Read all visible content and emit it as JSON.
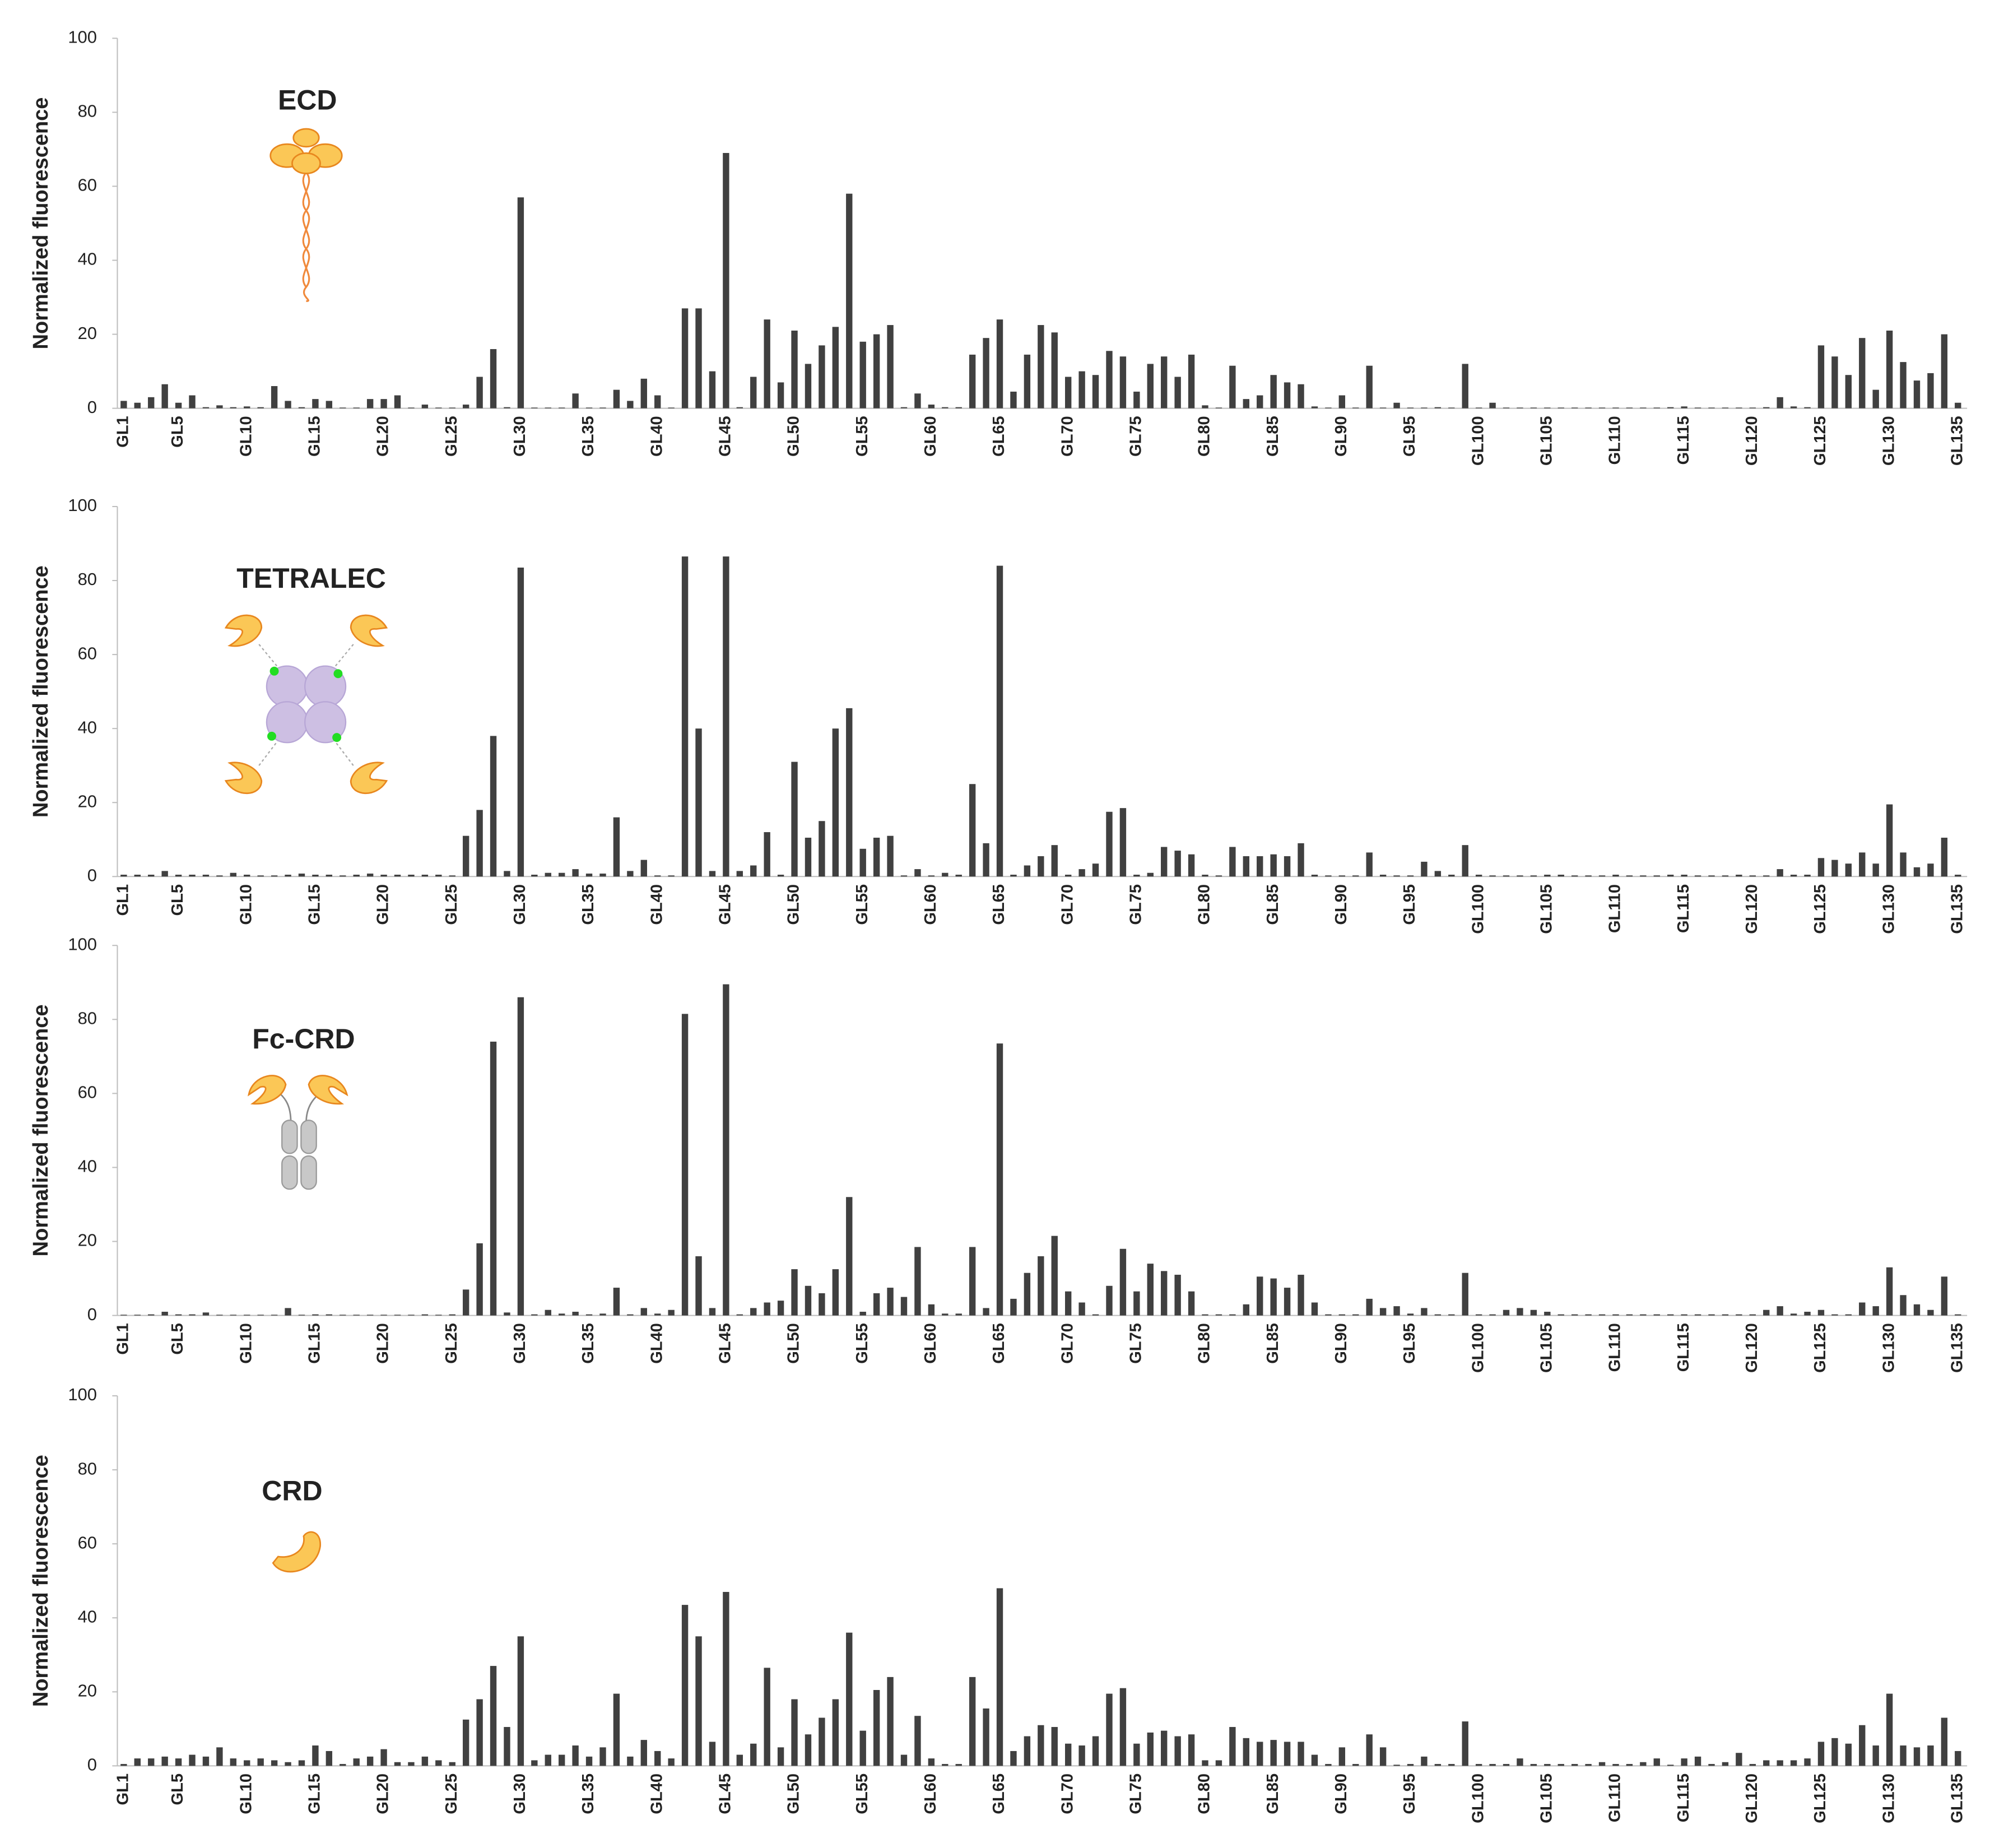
{
  "chart_data": [
    {
      "type": "bar",
      "title": "ECD",
      "y_label": "Normalized fluorescence",
      "color": "#404040",
      "ylim": [
        0,
        100
      ],
      "yticks": [
        0,
        20,
        40,
        60,
        80,
        100
      ],
      "categories": [
        "GL1",
        null,
        null,
        null,
        "GL5",
        null,
        null,
        null,
        null,
        "GL10",
        null,
        null,
        null,
        null,
        "GL15",
        null,
        null,
        null,
        null,
        "GL20",
        null,
        null,
        null,
        null,
        "GL25",
        null,
        null,
        null,
        null,
        "GL30",
        null,
        null,
        null,
        null,
        "GL35",
        null,
        null,
        null,
        null,
        "GL40",
        null,
        null,
        null,
        null,
        "GL45",
        null,
        null,
        null,
        null,
        "GL50",
        null,
        null,
        null,
        null,
        "GL55",
        null,
        null,
        null,
        null,
        "GL60",
        null,
        null,
        null,
        null,
        "GL65",
        null,
        null,
        null,
        null,
        "GL70",
        null,
        null,
        null,
        null,
        "GL75",
        null,
        null,
        null,
        null,
        "GL80",
        null,
        null,
        null,
        null,
        "GL85",
        null,
        null,
        null,
        null,
        "GL90",
        null,
        null,
        null,
        null,
        "GL95",
        null,
        null,
        null,
        null,
        "GL100",
        null,
        null,
        null,
        null,
        "GL105",
        null,
        null,
        null,
        null,
        "GL110",
        null,
        null,
        null,
        null,
        "GL115",
        null,
        null,
        null,
        null,
        "GL120",
        null,
        null,
        null,
        null,
        "GL125",
        null,
        null,
        null,
        null,
        "GL130",
        null,
        null,
        null,
        null,
        "GL135"
      ],
      "values": [
        2,
        1.5,
        3,
        6.5,
        1.5,
        3.5,
        0.3,
        0.8,
        0.3,
        0.5,
        0.3,
        6,
        2,
        0.3,
        2.5,
        2,
        0.2,
        0.2,
        2.5,
        2.5,
        3.5,
        0.2,
        1,
        0.2,
        0.2,
        1,
        8.5,
        16,
        0.3,
        57,
        0.2,
        0.2,
        0.2,
        4,
        0.2,
        0.2,
        5,
        2,
        8,
        3.5,
        0.2,
        27,
        27,
        10,
        69,
        0.3,
        8.5,
        24,
        7,
        21,
        12,
        17,
        22,
        58,
        18,
        20,
        22.5,
        0.3,
        4,
        1,
        0.3,
        0.3,
        14.5,
        19,
        24,
        4.5,
        14.5,
        22.5,
        20.5,
        8.5,
        10,
        9,
        15.5,
        14,
        4.5,
        12,
        14,
        8.5,
        14.5,
        0.8,
        0.2,
        11.5,
        2.5,
        3.5,
        9,
        7,
        6.5,
        0.5,
        0.2,
        3.5,
        0.2,
        11.5,
        0.2,
        1.5,
        0.2,
        0.2,
        0.3,
        0.2,
        12,
        0.2,
        1.5,
        0.2,
        0.2,
        0.2,
        0.2,
        0.2,
        0.2,
        0.2,
        0.2,
        0.2,
        0.2,
        0.2,
        0.2,
        0.3,
        0.5,
        0.2,
        0.2,
        0.2,
        0.2,
        0.2,
        0.3,
        3,
        0.5,
        0.3,
        17,
        14,
        9,
        19,
        5,
        21,
        12.5,
        7.5,
        9.5,
        20,
        1.5
      ]
    },
    {
      "type": "bar",
      "title": "TETRALEC",
      "y_label": "Normalized fluorescence",
      "color": "#404040",
      "ylim": [
        0,
        100
      ],
      "yticks": [
        0,
        20,
        40,
        60,
        80,
        100
      ],
      "categories": [
        "GL1",
        null,
        null,
        null,
        "GL5",
        null,
        null,
        null,
        null,
        "GL10",
        null,
        null,
        null,
        null,
        "GL15",
        null,
        null,
        null,
        null,
        "GL20",
        null,
        null,
        null,
        null,
        "GL25",
        null,
        null,
        null,
        null,
        "GL30",
        null,
        null,
        null,
        null,
        "GL35",
        null,
        null,
        null,
        null,
        "GL40",
        null,
        null,
        null,
        null,
        "GL45",
        null,
        null,
        null,
        null,
        "GL50",
        null,
        null,
        null,
        null,
        "GL55",
        null,
        null,
        null,
        null,
        "GL60",
        null,
        null,
        null,
        null,
        "GL65",
        null,
        null,
        null,
        null,
        "GL70",
        null,
        null,
        null,
        null,
        "GL75",
        null,
        null,
        null,
        null,
        "GL80",
        null,
        null,
        null,
        null,
        "GL85",
        null,
        null,
        null,
        null,
        "GL90",
        null,
        null,
        null,
        null,
        "GL95",
        null,
        null,
        null,
        null,
        "GL100",
        null,
        null,
        null,
        null,
        "GL105",
        null,
        null,
        null,
        null,
        "GL110",
        null,
        null,
        null,
        null,
        "GL115",
        null,
        null,
        null,
        null,
        "GL120",
        null,
        null,
        null,
        null,
        "GL125",
        null,
        null,
        null,
        null,
        "GL130",
        null,
        null,
        null,
        null,
        "GL135"
      ],
      "values": [
        0.5,
        0.5,
        0.5,
        1.5,
        0.5,
        0.5,
        0.5,
        0.3,
        1,
        0.5,
        0.3,
        0.3,
        0.5,
        0.8,
        0.5,
        0.5,
        0.3,
        0.5,
        0.8,
        0.5,
        0.5,
        0.5,
        0.5,
        0.5,
        0.3,
        11,
        18,
        38,
        1.5,
        83.5,
        0.5,
        1,
        1,
        2,
        0.8,
        0.8,
        16,
        1.5,
        4.5,
        0.3,
        0.3,
        86.5,
        40,
        1.5,
        86.5,
        1.5,
        3,
        12,
        0.5,
        31,
        10.5,
        15,
        40,
        45.5,
        7.5,
        10.5,
        11,
        0.3,
        2,
        0.3,
        1,
        0.5,
        25,
        9,
        84,
        0.5,
        3,
        5.5,
        8.5,
        0.5,
        2,
        3.5,
        17.5,
        18.5,
        0.5,
        1,
        8,
        7,
        6,
        0.5,
        0.3,
        8,
        5.5,
        5.5,
        6,
        5.5,
        9,
        0.5,
        0.3,
        0.3,
        0.3,
        6.5,
        0.5,
        0.3,
        0.3,
        4,
        1.5,
        0.5,
        8.5,
        0.5,
        0.3,
        0.3,
        0.3,
        0.3,
        0.5,
        0.5,
        0.3,
        0.3,
        0.3,
        0.5,
        0.3,
        0.3,
        0.3,
        0.5,
        0.5,
        0.3,
        0.3,
        0.3,
        0.5,
        0.3,
        0.3,
        2,
        0.5,
        0.5,
        5,
        4.5,
        3.5,
        6.5,
        3.5,
        19.5,
        6.5,
        2.5,
        3.5,
        10.5,
        0.5
      ]
    },
    {
      "type": "bar",
      "title": "Fc-CRD",
      "y_label": "Normalized fluorescence",
      "color": "#404040",
      "ylim": [
        0,
        100
      ],
      "yticks": [
        0,
        20,
        40,
        60,
        80,
        100
      ],
      "categories": [
        "GL1",
        null,
        null,
        null,
        "GL5",
        null,
        null,
        null,
        null,
        "GL10",
        null,
        null,
        null,
        null,
        "GL15",
        null,
        null,
        null,
        null,
        "GL20",
        null,
        null,
        null,
        null,
        "GL25",
        null,
        null,
        null,
        null,
        "GL30",
        null,
        null,
        null,
        null,
        "GL35",
        null,
        null,
        null,
        null,
        "GL40",
        null,
        null,
        null,
        null,
        "GL45",
        null,
        null,
        null,
        null,
        "GL50",
        null,
        null,
        null,
        null,
        "GL55",
        null,
        null,
        null,
        null,
        "GL60",
        null,
        null,
        null,
        null,
        "GL65",
        null,
        null,
        null,
        null,
        "GL70",
        null,
        null,
        null,
        null,
        "GL75",
        null,
        null,
        null,
        null,
        "GL80",
        null,
        null,
        null,
        null,
        "GL85",
        null,
        null,
        null,
        null,
        "GL90",
        null,
        null,
        null,
        null,
        "GL95",
        null,
        null,
        null,
        null,
        "GL100",
        null,
        null,
        null,
        null,
        "GL105",
        null,
        null,
        null,
        null,
        "GL110",
        null,
        null,
        null,
        null,
        "GL115",
        null,
        null,
        null,
        null,
        "GL120",
        null,
        null,
        null,
        null,
        "GL125",
        null,
        null,
        null,
        null,
        "GL130",
        null,
        null,
        null,
        null,
        "GL135"
      ],
      "values": [
        0.2,
        0.2,
        0.3,
        1,
        0.3,
        0.3,
        0.8,
        0.2,
        0.2,
        0.2,
        0.2,
        0.2,
        2,
        0.2,
        0.3,
        0.3,
        0.2,
        0.2,
        0.2,
        0.2,
        0.2,
        0.2,
        0.3,
        0.2,
        0.3,
        7,
        19.5,
        74,
        0.8,
        86,
        0.3,
        1.5,
        0.5,
        1,
        0.3,
        0.5,
        7.5,
        0.3,
        2,
        0.5,
        1.5,
        81.5,
        16,
        2,
        89.5,
        0.3,
        2,
        3.5,
        4,
        12.5,
        8,
        6,
        12.5,
        32,
        1,
        6,
        7.5,
        5,
        18.5,
        3,
        0.5,
        0.5,
        18.5,
        2,
        73.5,
        4.5,
        11.5,
        16,
        21.5,
        6.5,
        3.5,
        0.3,
        8,
        18,
        6.5,
        14,
        12,
        11,
        6.5,
        0.3,
        0.3,
        0.3,
        3,
        10.5,
        10,
        7.5,
        11,
        3.5,
        0.3,
        0.3,
        0.3,
        4.5,
        2,
        2.5,
        0.5,
        2,
        0.3,
        0.3,
        11.5,
        0.3,
        0.3,
        1.5,
        2,
        1.5,
        1,
        0.3,
        0.3,
        0.3,
        0.3,
        0.3,
        0.3,
        0.3,
        0.3,
        0.3,
        0.3,
        0.3,
        0.3,
        0.3,
        0.3,
        0.3,
        1.5,
        2.5,
        0.5,
        1,
        1.5,
        0.3,
        0.3,
        3.5,
        2.5,
        13,
        5.5,
        3,
        1.5,
        10.5,
        0.3
      ]
    },
    {
      "type": "bar",
      "title": "CRD",
      "y_label": "Normalized fluorescence",
      "color": "#404040",
      "ylim": [
        0,
        100
      ],
      "yticks": [
        0,
        20,
        40,
        60,
        80,
        100
      ],
      "categories": [
        "GL1",
        null,
        null,
        null,
        "GL5",
        null,
        null,
        null,
        null,
        "GL10",
        null,
        null,
        null,
        null,
        "GL15",
        null,
        null,
        null,
        null,
        "GL20",
        null,
        null,
        null,
        null,
        "GL25",
        null,
        null,
        null,
        null,
        "GL30",
        null,
        null,
        null,
        null,
        "GL35",
        null,
        null,
        null,
        null,
        "GL40",
        null,
        null,
        null,
        null,
        "GL45",
        null,
        null,
        null,
        null,
        "GL50",
        null,
        null,
        null,
        null,
        "GL55",
        null,
        null,
        null,
        null,
        "GL60",
        null,
        null,
        null,
        null,
        "GL65",
        null,
        null,
        null,
        null,
        "GL70",
        null,
        null,
        null,
        null,
        "GL75",
        null,
        null,
        null,
        null,
        "GL80",
        null,
        null,
        null,
        null,
        "GL85",
        null,
        null,
        null,
        null,
        "GL90",
        null,
        null,
        null,
        null,
        "GL95",
        null,
        null,
        null,
        null,
        "GL100",
        null,
        null,
        null,
        null,
        "GL105",
        null,
        null,
        null,
        null,
        "GL110",
        null,
        null,
        null,
        null,
        "GL115",
        null,
        null,
        null,
        null,
        "GL120",
        null,
        null,
        null,
        null,
        "GL125",
        null,
        null,
        null,
        null,
        "GL130",
        null,
        null,
        null,
        null,
        "GL135"
      ],
      "values": [
        0.5,
        2,
        2,
        2.5,
        2,
        3,
        2.5,
        5,
        2,
        1.5,
        2,
        1.5,
        1,
        1.5,
        5.5,
        4,
        0.5,
        2,
        2.5,
        4.5,
        1,
        1,
        2.5,
        1.5,
        1,
        12.5,
        18,
        27,
        10.5,
        35,
        1.5,
        3,
        3,
        5.5,
        2.5,
        5,
        19.5,
        2.5,
        7,
        4,
        2,
        43.5,
        35,
        6.5,
        47,
        3,
        6,
        26.5,
        5,
        18,
        8.5,
        13,
        18,
        36,
        9.5,
        20.5,
        24,
        3,
        13.5,
        2,
        0.5,
        0.5,
        24,
        15.5,
        48,
        4,
        8,
        11,
        10.5,
        6,
        5.5,
        8,
        19.5,
        21,
        6,
        9,
        9.5,
        8,
        8.5,
        1.5,
        1.5,
        10.5,
        7.5,
        6.5,
        7,
        6.5,
        6.5,
        3,
        0.5,
        5,
        0.5,
        8.5,
        5,
        0.3,
        0.5,
        2.5,
        0.5,
        0.5,
        12,
        0.5,
        0.5,
        0.5,
        2,
        0.5,
        0.5,
        0.5,
        0.5,
        0.5,
        1,
        0.5,
        0.5,
        1,
        2,
        0.3,
        2,
        2.5,
        0.5,
        1,
        3.5,
        0.5,
        1.5,
        1.5,
        1.5,
        2,
        6.5,
        7.5,
        6,
        11,
        5.5,
        19.5,
        5.5,
        5,
        5.5,
        13,
        4
      ]
    }
  ]
}
